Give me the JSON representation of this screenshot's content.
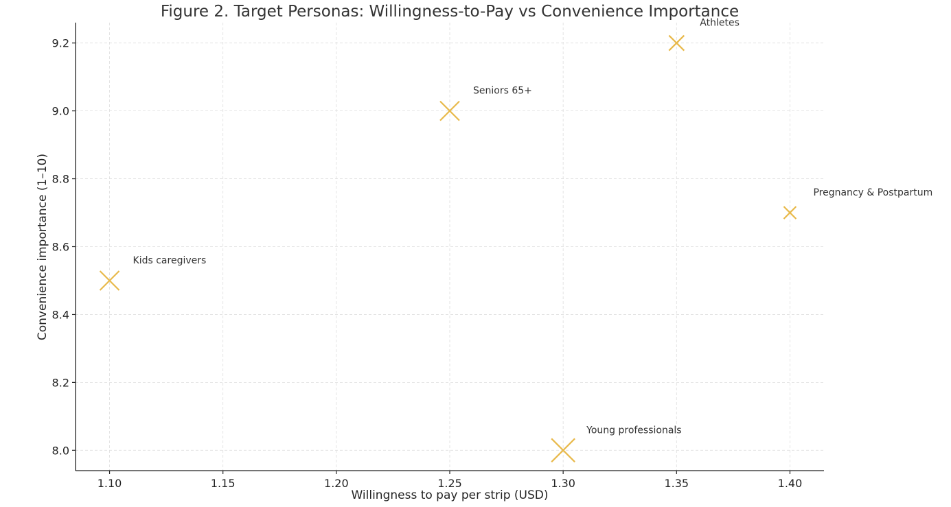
{
  "chart_data": {
    "type": "scatter",
    "title": "Figure 2. Target Personas: Willingness-to-Pay vs Convenience Importance",
    "xlabel": "Willingness to pay per strip (USD)",
    "ylabel": "Convenience importance (1–10)",
    "xlim": [
      1.085,
      1.415
    ],
    "ylim": [
      7.94,
      9.26
    ],
    "xticks": [
      "1.10",
      "1.15",
      "1.20",
      "1.25",
      "1.30",
      "1.35",
      "1.40"
    ],
    "yticks": [
      "8.0",
      "8.2",
      "8.4",
      "8.6",
      "8.8",
      "9.0",
      "9.2"
    ],
    "grid": true,
    "marker": "x",
    "color": "#E8B94A",
    "points": [
      {
        "label": "Kids caregivers",
        "x": 1.1,
        "y": 8.5,
        "marker_size": "large"
      },
      {
        "label": "Seniors 65+",
        "x": 1.25,
        "y": 9.0,
        "marker_size": "large"
      },
      {
        "label": "Athletes",
        "x": 1.35,
        "y": 9.2,
        "marker_size": "medium"
      },
      {
        "label": "Pregnancy & Postpartum",
        "x": 1.4,
        "y": 8.7,
        "marker_size": "small"
      },
      {
        "label": "Young professionals",
        "x": 1.3,
        "y": 8.0,
        "marker_size": "xlarge"
      }
    ]
  }
}
